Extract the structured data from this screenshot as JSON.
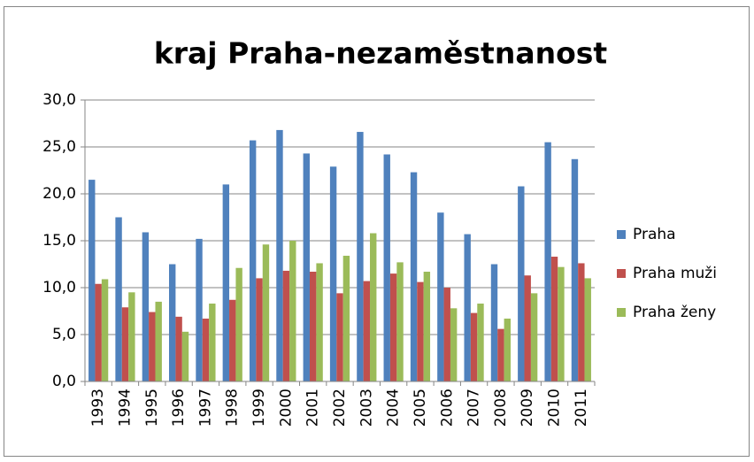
{
  "chart_data": {
    "type": "bar",
    "title": "kraj Praha-nezaměstnanost",
    "categories": [
      "1993",
      "1994",
      "1995",
      "1996",
      "1997",
      "1998",
      "1999",
      "2000",
      "2001",
      "2002",
      "2003",
      "2004",
      "2005",
      "2006",
      "2007",
      "2008",
      "2009",
      "2010",
      "2011"
    ],
    "series": [
      {
        "name": "Praha",
        "color": "#4f81bd",
        "values": [
          21.5,
          17.5,
          15.9,
          12.5,
          15.2,
          21.0,
          25.7,
          26.8,
          24.3,
          22.9,
          26.6,
          24.2,
          22.3,
          18.0,
          15.7,
          12.5,
          20.8,
          25.5,
          23.7
        ]
      },
      {
        "name": "Praha muži",
        "color": "#c0504d",
        "values": [
          10.4,
          7.9,
          7.4,
          6.9,
          6.7,
          8.7,
          11.0,
          11.8,
          11.7,
          9.4,
          10.7,
          11.5,
          10.6,
          10.0,
          7.3,
          5.6,
          11.3,
          13.3,
          12.6
        ]
      },
      {
        "name": "Praha ženy",
        "color": "#9bbb59",
        "values": [
          10.9,
          9.5,
          8.5,
          5.3,
          8.3,
          12.1,
          14.6,
          15.0,
          12.6,
          13.4,
          15.8,
          12.7,
          11.7,
          7.8,
          8.3,
          6.7,
          9.4,
          12.2,
          11.0
        ]
      }
    ],
    "ylim": [
      0,
      30
    ],
    "yticks": [
      {
        "value": 0,
        "label": "0,0"
      },
      {
        "value": 5,
        "label": "5,0"
      },
      {
        "value": 10,
        "label": "10,0"
      },
      {
        "value": 15,
        "label": "15,0"
      },
      {
        "value": 20,
        "label": "20,0"
      },
      {
        "value": 25,
        "label": "25,0"
      },
      {
        "value": 30,
        "label": "30,0"
      }
    ],
    "grid": true,
    "legend": "right"
  }
}
